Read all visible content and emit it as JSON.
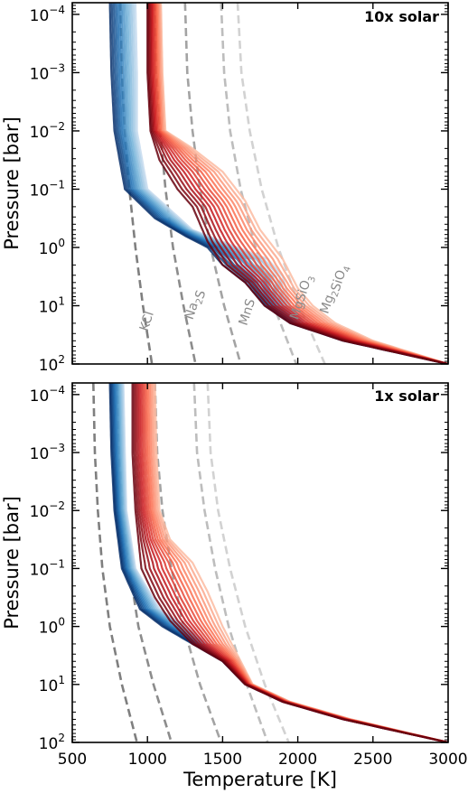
{
  "chart_data": [
    {
      "type": "line",
      "panel_label": "10x solar",
      "xlabel": "",
      "ylabel": "Pressure [bar]",
      "xlim": [
        500,
        3000
      ],
      "ylim_log10": [
        2,
        -4.2
      ],
      "y_scale": "log, inverted",
      "x_ticks": [
        "500",
        "1000",
        "1500",
        "2000",
        "2500",
        "3000"
      ],
      "x_tick_labels_shown": false,
      "y_ticks": [
        {
          "exp": -4,
          "base": "10",
          "sup": "−4"
        },
        {
          "exp": -3,
          "base": "10",
          "sup": "−3"
        },
        {
          "exp": -2,
          "base": "10",
          "sup": "−2"
        },
        {
          "exp": -1,
          "base": "10",
          "sup": "−1"
        },
        {
          "exp": 0,
          "base": "10",
          "sup": "0"
        },
        {
          "exp": 1,
          "base": "10",
          "sup": "1"
        },
        {
          "exp": 2,
          "base": "10",
          "sup": "2"
        }
      ],
      "condensation_curves": [
        {
          "name": "KCl",
          "label_parts": [
            {
              "t": "KCl"
            }
          ],
          "color": "#7f7f7f",
          "points": [
            [
              820,
              -4.2
            ],
            [
              830,
              -3.0
            ],
            [
              850,
              -2.0
            ],
            [
              880,
              -1.0
            ],
            [
              920,
              0.0
            ],
            [
              970,
              1.0
            ],
            [
              1030,
              2.0
            ]
          ]
        },
        {
          "name": "Na2S",
          "label_parts": [
            {
              "t": "Na"
            },
            {
              "t": "2",
              "sub": true
            },
            {
              "t": "S"
            }
          ],
          "color": "#8c8c8c",
          "points": [
            [
              1050,
              -4.2
            ],
            [
              1060,
              -3.0
            ],
            [
              1085,
              -2.0
            ],
            [
              1120,
              -1.0
            ],
            [
              1170,
              0.0
            ],
            [
              1240,
              1.0
            ],
            [
              1320,
              2.0
            ]
          ]
        },
        {
          "name": "MnS",
          "label_parts": [
            {
              "t": "MnS"
            }
          ],
          "color": "#a3a3a3",
          "points": [
            [
              1250,
              -4.2
            ],
            [
              1265,
              -3.0
            ],
            [
              1300,
              -2.0
            ],
            [
              1350,
              -1.0
            ],
            [
              1420,
              0.0
            ],
            [
              1510,
              1.0
            ],
            [
              1620,
              2.0
            ]
          ]
        },
        {
          "name": "MgSiO3",
          "label_parts": [
            {
              "t": "MgSiO"
            },
            {
              "t": "3",
              "sub": true
            }
          ],
          "color": "#bdbdbd",
          "points": [
            [
              1490,
              -4.2
            ],
            [
              1510,
              -3.0
            ],
            [
              1550,
              -2.0
            ],
            [
              1620,
              -1.0
            ],
            [
              1720,
              0.0
            ],
            [
              1840,
              1.0
            ],
            [
              1990,
              2.0
            ]
          ]
        },
        {
          "name": "Mg2SiO4",
          "label_parts": [
            {
              "t": "Mg"
            },
            {
              "t": "2",
              "sub": true
            },
            {
              "t": "SiO"
            },
            {
              "t": "4",
              "sub": true
            }
          ],
          "color": "#d2d2d2",
          "points": [
            [
              1600,
              -4.2
            ],
            [
              1625,
              -3.0
            ],
            [
              1680,
              -2.0
            ],
            [
              1760,
              -1.0
            ],
            [
              1870,
              0.0
            ],
            [
              2010,
              1.0
            ],
            [
              2180,
              2.0
            ]
          ]
        }
      ],
      "profile_families": {
        "count": 14,
        "blue": {
          "colors": [
            "#08306b",
            "#2171b5",
            "#6baed6",
            "#c6dbef"
          ],
          "points_cold": [
            [
              750,
              -4.2
            ],
            [
              760,
              -3.0
            ],
            [
              780,
              -2.0
            ],
            [
              850,
              -1.0
            ],
            [
              1050,
              -0.5
            ],
            [
              1250,
              -0.2
            ],
            [
              1400,
              0.0
            ],
            [
              1500,
              0.3
            ],
            [
              1650,
              0.6
            ],
            [
              1780,
              1.0
            ],
            [
              1950,
              1.3
            ],
            [
              2300,
              1.6
            ],
            [
              3000,
              2.0
            ]
          ],
          "points_warm": [
            [
              920,
              -4.2
            ],
            [
              930,
              -3.0
            ],
            [
              930,
              -2.0
            ],
            [
              1000,
              -1.0
            ],
            [
              1300,
              -0.3
            ],
            [
              1600,
              0.0
            ],
            [
              1800,
              0.2
            ],
            [
              1900,
              0.5
            ],
            [
              1950,
              1.0
            ],
            [
              2050,
              1.3
            ],
            [
              2350,
              1.6
            ],
            [
              3000,
              2.0
            ]
          ]
        },
        "red": {
          "colors": [
            "#67000d",
            "#cb181d",
            "#fb6a4a",
            "#fcbba1"
          ],
          "points_cold": [
            [
              1000,
              -4.2
            ],
            [
              1000,
              -3.0
            ],
            [
              1020,
              -2.0
            ],
            [
              1080,
              -1.5
            ],
            [
              1200,
              -1.0
            ],
            [
              1300,
              -0.7
            ],
            [
              1350,
              -0.4
            ],
            [
              1400,
              -0.1
            ],
            [
              1500,
              0.3
            ],
            [
              1650,
              0.6
            ],
            [
              1780,
              1.0
            ],
            [
              1950,
              1.3
            ],
            [
              2300,
              1.6
            ],
            [
              3000,
              2.0
            ]
          ],
          "points_warm": [
            [
              1090,
              -4.2
            ],
            [
              1100,
              -3.0
            ],
            [
              1120,
              -2.0
            ],
            [
              1300,
              -1.7
            ],
            [
              1500,
              -1.3
            ],
            [
              1650,
              -0.8
            ],
            [
              1750,
              -0.3
            ],
            [
              1900,
              0.2
            ],
            [
              2000,
              0.7
            ],
            [
              2100,
              1.0
            ],
            [
              2250,
              1.3
            ],
            [
              2500,
              1.6
            ],
            [
              3000,
              2.0
            ]
          ]
        }
      }
    },
    {
      "type": "line",
      "panel_label": "1x solar",
      "xlabel": "Temperature [K]",
      "ylabel": "Pressure [bar]",
      "xlim": [
        500,
        3000
      ],
      "ylim_log10": [
        2,
        -4.2
      ],
      "y_scale": "log, inverted",
      "x_ticks": [
        "500",
        "1000",
        "1500",
        "2000",
        "2500",
        "3000"
      ],
      "x_tick_labels_shown": true,
      "y_ticks": [
        {
          "exp": -4,
          "base": "10",
          "sup": "−4"
        },
        {
          "exp": -3,
          "base": "10",
          "sup": "−3"
        },
        {
          "exp": -2,
          "base": "10",
          "sup": "−2"
        },
        {
          "exp": -1,
          "base": "10",
          "sup": "−1"
        },
        {
          "exp": 0,
          "base": "10",
          "sup": "0"
        },
        {
          "exp": 1,
          "base": "10",
          "sup": "1"
        },
        {
          "exp": 2,
          "base": "10",
          "sup": "2"
        }
      ],
      "condensation_curves": [
        {
          "name": "KCl",
          "label_parts": [],
          "color": "#7f7f7f",
          "points": [
            [
              640,
              -4.2
            ],
            [
              650,
              -3.0
            ],
            [
              670,
              -2.0
            ],
            [
              700,
              -1.0
            ],
            [
              750,
              0.0
            ],
            [
              830,
              1.0
            ],
            [
              930,
              2.0
            ]
          ]
        },
        {
          "name": "Na2S",
          "label_parts": [],
          "color": "#8c8c8c",
          "points": [
            [
              800,
              -4.2
            ],
            [
              810,
              -3.0
            ],
            [
              840,
              -2.0
            ],
            [
              880,
              -1.0
            ],
            [
              940,
              0.0
            ],
            [
              1040,
              1.0
            ],
            [
              1160,
              2.0
            ]
          ]
        },
        {
          "name": "MnS",
          "label_parts": [],
          "color": "#a3a3a3",
          "points": [
            [
              1050,
              -4.2
            ],
            [
              1065,
              -3.0
            ],
            [
              1100,
              -2.0
            ],
            [
              1160,
              -1.0
            ],
            [
              1240,
              0.0
            ],
            [
              1350,
              1.0
            ],
            [
              1490,
              2.0
            ]
          ]
        },
        {
          "name": "MgSiO3",
          "label_parts": [],
          "color": "#bdbdbd",
          "points": [
            [
              1310,
              -4.2
            ],
            [
              1330,
              -3.0
            ],
            [
              1380,
              -2.0
            ],
            [
              1450,
              -1.0
            ],
            [
              1540,
              0.0
            ],
            [
              1660,
              1.0
            ],
            [
              1800,
              2.0
            ]
          ]
        },
        {
          "name": "Mg2SiO4",
          "label_parts": [],
          "color": "#d2d2d2",
          "points": [
            [
              1400,
              -4.2
            ],
            [
              1420,
              -3.0
            ],
            [
              1470,
              -2.0
            ],
            [
              1550,
              -1.0
            ],
            [
              1650,
              0.0
            ],
            [
              1780,
              1.0
            ],
            [
              1940,
              2.0
            ]
          ]
        }
      ],
      "profile_families": {
        "count": 14,
        "blue": {
          "colors": [
            "#08306b",
            "#2171b5",
            "#6baed6",
            "#c6dbef"
          ],
          "points_cold": [
            [
              750,
              -4.2
            ],
            [
              760,
              -3.0
            ],
            [
              780,
              -2.0
            ],
            [
              830,
              -1.0
            ],
            [
              950,
              -0.3
            ],
            [
              1100,
              0.0
            ],
            [
              1300,
              0.3
            ],
            [
              1500,
              0.6
            ],
            [
              1650,
              1.0
            ],
            [
              1900,
              1.3
            ],
            [
              2300,
              1.6
            ],
            [
              3000,
              2.0
            ]
          ],
          "points_warm": [
            [
              840,
              -4.2
            ],
            [
              850,
              -3.0
            ],
            [
              860,
              -2.0
            ],
            [
              920,
              -1.0
            ],
            [
              1080,
              -0.3
            ],
            [
              1250,
              0.0
            ],
            [
              1450,
              0.4
            ],
            [
              1600,
              0.8
            ],
            [
              1700,
              1.0
            ],
            [
              1950,
              1.3
            ],
            [
              2350,
              1.6
            ],
            [
              3000,
              2.0
            ]
          ]
        },
        "red": {
          "colors": [
            "#67000d",
            "#cb181d",
            "#fb6a4a",
            "#fcbba1"
          ],
          "points_cold": [
            [
              900,
              -4.2
            ],
            [
              900,
              -3.0
            ],
            [
              920,
              -2.0
            ],
            [
              960,
              -1.0
            ],
            [
              1050,
              -0.5
            ],
            [
              1150,
              -0.1
            ],
            [
              1300,
              0.3
            ],
            [
              1500,
              0.6
            ],
            [
              1650,
              1.0
            ],
            [
              1900,
              1.3
            ],
            [
              2300,
              1.6
            ],
            [
              3000,
              2.0
            ]
          ],
          "points_warm": [
            [
              1050,
              -4.2
            ],
            [
              1060,
              -3.0
            ],
            [
              1080,
              -2.0
            ],
            [
              1150,
              -1.5
            ],
            [
              1300,
              -1.1
            ],
            [
              1400,
              -0.6
            ],
            [
              1500,
              0.0
            ],
            [
              1600,
              0.5
            ],
            [
              1700,
              1.0
            ],
            [
              1950,
              1.3
            ],
            [
              2350,
              1.6
            ],
            [
              3000,
              2.0
            ]
          ]
        }
      }
    }
  ]
}
